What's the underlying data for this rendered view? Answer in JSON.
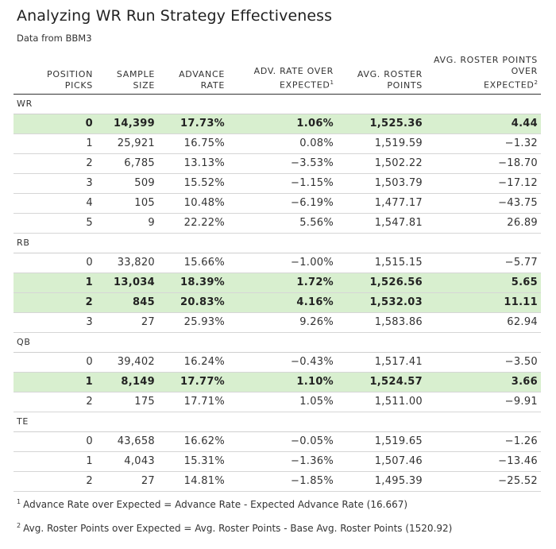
{
  "chart_data": {
    "type": "table",
    "title": "Analyzing WR Run Strategy Effectiveness",
    "subtitle": "Data from BBM3",
    "columns": [
      {
        "line1": "POSITION",
        "line2": "PICKS",
        "note": ""
      },
      {
        "line1": "SAMPLE",
        "line2": "SIZE",
        "note": ""
      },
      {
        "line1": "ADVANCE",
        "line2": "RATE",
        "note": ""
      },
      {
        "line1": "ADV. RATE OVER",
        "line2": "EXPECTED",
        "note": "1"
      },
      {
        "line1": "AVG. ROSTER",
        "line2": "POINTS",
        "note": ""
      },
      {
        "line1": "AVG. ROSTER POINTS OVER",
        "line2": "EXPECTED",
        "note": "2"
      }
    ],
    "groups": [
      {
        "label": "WR",
        "rows": [
          {
            "picks": "0",
            "sample": "14,399",
            "advance": "17.73%",
            "adv_over": "1.06%",
            "avg_points": "1,525.36",
            "points_over": "4.44",
            "highlight": true
          },
          {
            "picks": "1",
            "sample": "25,921",
            "advance": "16.75%",
            "adv_over": "0.08%",
            "avg_points": "1,519.59",
            "points_over": "−1.32",
            "highlight": false
          },
          {
            "picks": "2",
            "sample": "6,785",
            "advance": "13.13%",
            "adv_over": "−3.53%",
            "avg_points": "1,502.22",
            "points_over": "−18.70",
            "highlight": false
          },
          {
            "picks": "3",
            "sample": "509",
            "advance": "15.52%",
            "adv_over": "−1.15%",
            "avg_points": "1,503.79",
            "points_over": "−17.12",
            "highlight": false
          },
          {
            "picks": "4",
            "sample": "105",
            "advance": "10.48%",
            "adv_over": "−6.19%",
            "avg_points": "1,477.17",
            "points_over": "−43.75",
            "highlight": false
          },
          {
            "picks": "5",
            "sample": "9",
            "advance": "22.22%",
            "adv_over": "5.56%",
            "avg_points": "1,547.81",
            "points_over": "26.89",
            "highlight": false
          }
        ]
      },
      {
        "label": "RB",
        "rows": [
          {
            "picks": "0",
            "sample": "33,820",
            "advance": "15.66%",
            "adv_over": "−1.00%",
            "avg_points": "1,515.15",
            "points_over": "−5.77",
            "highlight": false
          },
          {
            "picks": "1",
            "sample": "13,034",
            "advance": "18.39%",
            "adv_over": "1.72%",
            "avg_points": "1,526.56",
            "points_over": "5.65",
            "highlight": true
          },
          {
            "picks": "2",
            "sample": "845",
            "advance": "20.83%",
            "adv_over": "4.16%",
            "avg_points": "1,532.03",
            "points_over": "11.11",
            "highlight": true
          },
          {
            "picks": "3",
            "sample": "27",
            "advance": "25.93%",
            "adv_over": "9.26%",
            "avg_points": "1,583.86",
            "points_over": "62.94",
            "highlight": false
          }
        ]
      },
      {
        "label": "QB",
        "rows": [
          {
            "picks": "0",
            "sample": "39,402",
            "advance": "16.24%",
            "adv_over": "−0.43%",
            "avg_points": "1,517.41",
            "points_over": "−3.50",
            "highlight": false
          },
          {
            "picks": "1",
            "sample": "8,149",
            "advance": "17.77%",
            "adv_over": "1.10%",
            "avg_points": "1,524.57",
            "points_over": "3.66",
            "highlight": true
          },
          {
            "picks": "2",
            "sample": "175",
            "advance": "17.71%",
            "adv_over": "1.05%",
            "avg_points": "1,511.00",
            "points_over": "−9.91",
            "highlight": false
          }
        ]
      },
      {
        "label": "TE",
        "rows": [
          {
            "picks": "0",
            "sample": "43,658",
            "advance": "16.62%",
            "adv_over": "−0.05%",
            "avg_points": "1,519.65",
            "points_over": "−1.26",
            "highlight": false
          },
          {
            "picks": "1",
            "sample": "4,043",
            "advance": "15.31%",
            "adv_over": "−1.36%",
            "avg_points": "1,507.46",
            "points_over": "−13.46",
            "highlight": false
          },
          {
            "picks": "2",
            "sample": "27",
            "advance": "14.81%",
            "adv_over": "−1.85%",
            "avg_points": "1,495.39",
            "points_over": "−25.52",
            "highlight": false
          }
        ]
      }
    ],
    "footnotes": [
      {
        "mark": "1",
        "text": "Advance Rate over Expected = Advance Rate - Expected Advance Rate (16.667)"
      },
      {
        "mark": "2",
        "text": "Avg. Roster Points over Expected = Avg. Roster Points - Base Avg. Roster Points (1520.92)"
      }
    ]
  },
  "colors": {
    "highlight_row": "#d8efcf",
    "header_rule": "#333333",
    "row_rule": "#d6d6d6"
  }
}
